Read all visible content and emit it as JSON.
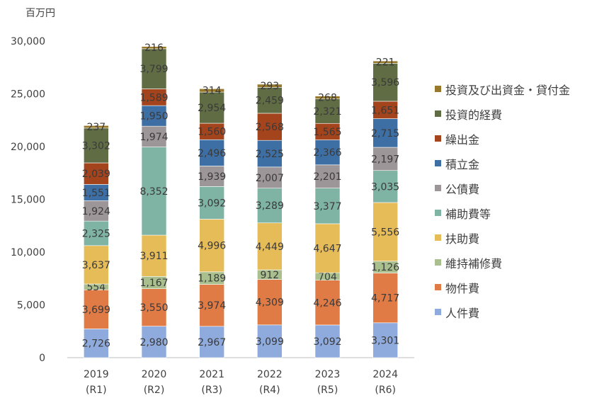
{
  "chart_data": {
    "type": "bar",
    "stacked": true,
    "unit_label": "百万円",
    "categories": [
      "2019",
      "2020",
      "2021",
      "2022",
      "2023",
      "2024"
    ],
    "category_sublabels": [
      "(R1)",
      "(R2)",
      "(R3)",
      "(R4)",
      "(R5)",
      "(R6)"
    ],
    "ylim": [
      0,
      30000
    ],
    "yticks": [
      0,
      5000,
      10000,
      15000,
      20000,
      25000,
      30000
    ],
    "ytick_labels": [
      "0",
      "5,000",
      "10,000",
      "15,000",
      "20,000",
      "25,000",
      "30,000"
    ],
    "grid": false,
    "legend_position": "right",
    "series": [
      {
        "name": "人件費",
        "color": "#8faadc",
        "values": [
          2726,
          2980,
          2967,
          3099,
          3092,
          3301
        ]
      },
      {
        "name": "物件費",
        "color": "#e07b45",
        "values": [
          3699,
          3550,
          3974,
          4309,
          4246,
          4717
        ]
      },
      {
        "name": "維持補修費",
        "color": "#a9c08e",
        "values": [
          554,
          1167,
          1189,
          912,
          704,
          1126
        ]
      },
      {
        "name": "扶助費",
        "color": "#e6bc59",
        "values": [
          3637,
          3911,
          4996,
          4449,
          4647,
          5556
        ]
      },
      {
        "name": "補助費等",
        "color": "#7fb3a3",
        "values": [
          2325,
          8352,
          3092,
          3289,
          3377,
          3035
        ]
      },
      {
        "name": "公債費",
        "color": "#9d9699",
        "values": [
          1924,
          1974,
          1939,
          2007,
          2201,
          2197
        ]
      },
      {
        "name": "積立金",
        "color": "#3e6fa4",
        "values": [
          1551,
          1950,
          2496,
          2525,
          2366,
          2715
        ]
      },
      {
        "name": "繰出金",
        "color": "#a4441c",
        "values": [
          2039,
          1589,
          1560,
          2568,
          1565,
          1651
        ]
      },
      {
        "name": "投資的経費",
        "color": "#606c43",
        "values": [
          3302,
          3799,
          2954,
          2459,
          2321,
          3596
        ]
      },
      {
        "name": "投資及び出資金・貸付金",
        "color": "#98782a",
        "values": [
          237,
          216,
          314,
          293,
          268,
          221
        ]
      }
    ]
  }
}
